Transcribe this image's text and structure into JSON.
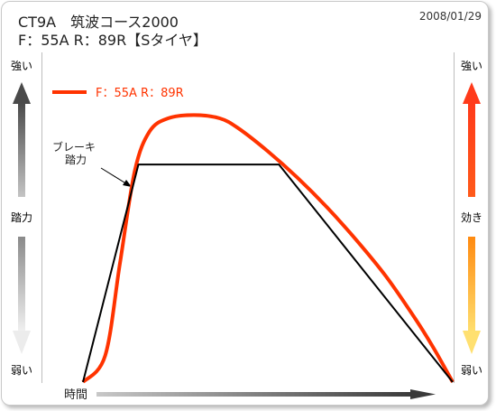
{
  "header": {
    "title_line1": "CT9A　筑波コース2000",
    "title_line2": "F：55A  R：89R【Sタイヤ】",
    "date": "2008/01/29"
  },
  "left_axis": {
    "top": "強い",
    "middle": "踏力",
    "bottom": "弱い"
  },
  "right_axis": {
    "top": "強い",
    "middle": "効き",
    "bottom": "弱い"
  },
  "x_axis_label": "時間",
  "colors": {
    "effect_curve": "#ff3300",
    "pedal_line": "#000000",
    "left_arrow": "#555555",
    "right_arrow_top": "#ff3a1a",
    "right_arrow_bottom": "#ffd060"
  },
  "chart_data": {
    "type": "line",
    "xlabel": "時間",
    "legend": {
      "placement": "top-left"
    },
    "ylim": [
      0,
      1
    ],
    "series": [
      {
        "name": "F：55A  R：89R",
        "kind": "effect",
        "x": [
          0,
          0.06,
          0.1,
          0.14,
          0.18,
          0.23,
          0.3,
          0.37,
          0.42,
          0.5,
          0.58,
          0.66,
          0.74,
          0.82,
          0.9,
          0.95,
          1.0
        ],
        "values": [
          0.0,
          0.08,
          0.36,
          0.64,
          0.76,
          0.8,
          0.81,
          0.8,
          0.77,
          0.7,
          0.62,
          0.53,
          0.43,
          0.32,
          0.19,
          0.1,
          0.0
        ]
      },
      {
        "name": "ブレーキ踏力",
        "kind": "pedal",
        "x": [
          0,
          0.15,
          0.53,
          1.0
        ],
        "values": [
          0.0,
          0.66,
          0.66,
          0.0
        ]
      }
    ],
    "annotations": [
      {
        "text": "ブレーキ\n踏力",
        "target_series": "ブレーキ踏力"
      }
    ]
  }
}
